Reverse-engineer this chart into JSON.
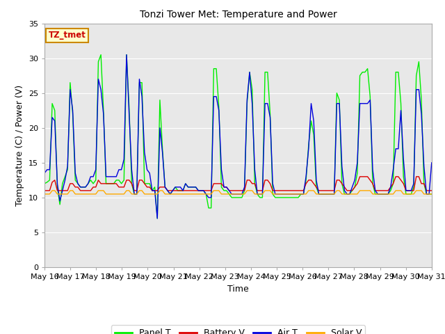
{
  "title": "Tonzi Tower Met: Temperature and Power",
  "xlabel": "Time",
  "ylabel": "Temperature (C) / Power (V)",
  "ylim": [
    0,
    35
  ],
  "yticks": [
    0,
    5,
    10,
    15,
    20,
    25,
    30,
    35
  ],
  "fig_bg_color": "#ffffff",
  "plot_bg_color": "#e8e8e8",
  "annotation_text": "TZ_tmet",
  "annotation_color": "#cc0000",
  "annotation_bg": "#ffffcc",
  "annotation_border": "#cc8800",
  "x_labels": [
    "May 16",
    "May 17",
    "May 18",
    "May 19",
    "May 20",
    "May 21",
    "May 22",
    "May 23",
    "May 24",
    "May 25",
    "May 26",
    "May 27",
    "May 28",
    "May 29",
    "May 30",
    "May 31"
  ],
  "legend_labels": [
    "Panel T",
    "Battery V",
    "Air T",
    "Solar V"
  ],
  "legend_colors": [
    "#00ee00",
    "#dd0000",
    "#0000dd",
    "#ffaa00"
  ],
  "panel_t": [
    12.0,
    12.2,
    12.5,
    23.5,
    22.5,
    11.5,
    9.0,
    12.0,
    13.0,
    14.0,
    26.5,
    22.0,
    12.5,
    12.0,
    11.5,
    11.5,
    11.5,
    12.0,
    12.5,
    12.0,
    12.5,
    29.5,
    30.5,
    22.5,
    12.0,
    12.0,
    12.0,
    12.0,
    12.5,
    12.5,
    12.0,
    12.5,
    30.5,
    23.0,
    12.0,
    10.5,
    10.5,
    26.5,
    26.5,
    12.0,
    12.0,
    12.0,
    11.0,
    11.5,
    7.0,
    24.0,
    17.0,
    11.5,
    11.0,
    10.5,
    11.0,
    11.5,
    11.0,
    11.0,
    11.0,
    12.0,
    11.5,
    11.5,
    11.5,
    11.5,
    11.0,
    11.0,
    11.0,
    10.5,
    8.5,
    8.5,
    28.5,
    28.5,
    23.0,
    11.5,
    11.0,
    11.0,
    10.5,
    10.0,
    10.0,
    10.0,
    10.0,
    10.0,
    11.0,
    23.5,
    28.0,
    25.5,
    12.0,
    10.5,
    10.0,
    10.0,
    28.0,
    28.0,
    22.0,
    10.5,
    10.0,
    10.0,
    10.0,
    10.0,
    10.0,
    10.0,
    10.0,
    10.0,
    10.0,
    10.0,
    10.5,
    10.5,
    12.5,
    17.5,
    21.0,
    19.0,
    11.5,
    10.5,
    10.5,
    10.5,
    10.5,
    10.5,
    10.5,
    10.5,
    25.0,
    24.0,
    12.0,
    10.5,
    10.5,
    10.5,
    11.0,
    11.5,
    13.5,
    27.5,
    28.0,
    28.0,
    28.5,
    24.5,
    12.0,
    10.5,
    10.5,
    10.5,
    10.5,
    10.5,
    10.5,
    11.0,
    12.0,
    28.0,
    28.0,
    23.5,
    13.0,
    10.5,
    10.5,
    10.5,
    11.5,
    27.5,
    29.5,
    24.0,
    12.0,
    10.5,
    10.5,
    10.5
  ],
  "battery_v": [
    11.0,
    11.0,
    11.0,
    12.2,
    12.5,
    11.0,
    11.0,
    11.0,
    11.0,
    11.0,
    12.0,
    12.0,
    11.5,
    11.5,
    11.0,
    11.0,
    11.0,
    11.0,
    11.0,
    11.5,
    11.5,
    12.5,
    12.0,
    12.0,
    12.0,
    12.0,
    12.0,
    12.0,
    12.0,
    11.5,
    11.5,
    11.5,
    12.5,
    12.5,
    12.0,
    11.0,
    11.0,
    12.5,
    12.5,
    12.0,
    11.5,
    11.5,
    11.0,
    11.0,
    11.0,
    11.5,
    11.5,
    11.5,
    11.0,
    11.0,
    11.0,
    11.0,
    11.0,
    11.0,
    11.0,
    11.0,
    11.0,
    11.0,
    11.0,
    11.0,
    11.0,
    11.0,
    11.0,
    11.0,
    11.0,
    11.0,
    12.0,
    12.0,
    12.0,
    12.0,
    11.5,
    11.5,
    11.0,
    11.0,
    11.0,
    11.0,
    11.0,
    11.0,
    11.0,
    12.5,
    12.5,
    12.0,
    12.0,
    11.0,
    11.0,
    11.0,
    12.5,
    12.5,
    12.0,
    11.0,
    11.0,
    11.0,
    11.0,
    11.0,
    11.0,
    11.0,
    11.0,
    11.0,
    11.0,
    11.0,
    11.0,
    11.0,
    12.0,
    12.5,
    12.5,
    12.0,
    11.5,
    11.0,
    11.0,
    11.0,
    11.0,
    11.0,
    11.0,
    11.0,
    12.5,
    12.5,
    12.0,
    11.5,
    11.0,
    11.0,
    11.0,
    11.5,
    12.0,
    13.0,
    13.0,
    13.0,
    13.0,
    12.5,
    12.0,
    11.0,
    11.0,
    11.0,
    11.0,
    11.0,
    11.0,
    11.5,
    12.0,
    13.0,
    13.0,
    12.5,
    12.0,
    11.0,
    11.0,
    11.0,
    11.0,
    13.0,
    13.0,
    12.0,
    12.0,
    11.0,
    11.0,
    11.0
  ],
  "air_t": [
    13.5,
    14.0,
    14.0,
    21.5,
    21.0,
    12.0,
    9.5,
    11.0,
    12.5,
    14.5,
    25.5,
    22.5,
    13.5,
    12.0,
    11.5,
    11.5,
    11.5,
    12.0,
    13.0,
    13.0,
    14.0,
    27.0,
    25.5,
    22.0,
    13.0,
    13.0,
    13.0,
    13.0,
    13.0,
    14.0,
    14.0,
    15.5,
    30.5,
    22.0,
    14.0,
    10.5,
    10.5,
    27.0,
    24.5,
    16.5,
    14.0,
    13.5,
    11.0,
    11.0,
    7.0,
    20.0,
    16.5,
    11.5,
    11.0,
    10.5,
    11.0,
    11.5,
    11.5,
    11.5,
    11.0,
    12.0,
    11.5,
    11.5,
    11.5,
    11.5,
    11.0,
    11.0,
    11.0,
    10.5,
    10.0,
    10.0,
    24.5,
    24.5,
    22.5,
    14.0,
    11.5,
    11.5,
    11.0,
    10.5,
    10.5,
    10.5,
    10.5,
    10.5,
    11.5,
    24.0,
    28.0,
    23.5,
    14.0,
    10.5,
    10.5,
    10.5,
    23.5,
    23.5,
    21.5,
    12.0,
    10.5,
    10.5,
    10.5,
    10.5,
    10.5,
    10.5,
    10.5,
    10.5,
    10.5,
    10.5,
    10.5,
    10.5,
    13.0,
    17.0,
    23.5,
    21.0,
    12.5,
    10.5,
    10.5,
    10.5,
    10.5,
    10.5,
    10.5,
    10.5,
    23.5,
    23.5,
    14.5,
    11.0,
    10.5,
    10.5,
    11.5,
    12.5,
    15.0,
    23.5,
    23.5,
    23.5,
    23.5,
    24.0,
    14.0,
    11.0,
    10.5,
    10.5,
    10.5,
    10.5,
    10.5,
    11.5,
    14.0,
    17.0,
    17.0,
    22.5,
    15.5,
    11.0,
    11.0,
    11.0,
    12.0,
    25.5,
    25.5,
    22.0,
    14.5,
    10.5,
    10.5,
    15.0
  ],
  "solar_v": [
    10.5,
    10.5,
    10.5,
    11.0,
    11.0,
    10.5,
    10.5,
    10.5,
    10.5,
    10.5,
    11.0,
    11.0,
    10.5,
    10.5,
    10.5,
    10.5,
    10.5,
    10.5,
    10.5,
    10.5,
    10.5,
    11.0,
    11.0,
    11.0,
    10.5,
    10.5,
    10.5,
    10.5,
    10.5,
    10.5,
    10.5,
    10.5,
    11.0,
    11.0,
    10.5,
    10.5,
    10.5,
    11.0,
    11.0,
    10.5,
    10.5,
    10.5,
    10.5,
    10.5,
    10.5,
    11.0,
    11.0,
    10.5,
    10.5,
    10.5,
    10.5,
    10.5,
    10.5,
    10.5,
    10.5,
    10.5,
    10.5,
    10.5,
    10.5,
    10.5,
    10.5,
    10.5,
    10.5,
    10.5,
    10.5,
    10.5,
    11.0,
    11.0,
    11.0,
    10.5,
    10.5,
    10.5,
    10.5,
    10.5,
    10.5,
    10.5,
    10.5,
    10.5,
    10.5,
    11.0,
    11.0,
    11.0,
    10.5,
    10.5,
    10.5,
    10.5,
    11.0,
    11.0,
    11.0,
    10.5,
    10.5,
    10.5,
    10.5,
    10.5,
    10.5,
    10.5,
    10.5,
    10.5,
    10.5,
    10.5,
    10.5,
    10.5,
    10.5,
    11.0,
    11.0,
    11.0,
    10.5,
    10.5,
    10.5,
    10.5,
    10.5,
    10.5,
    10.5,
    10.5,
    11.0,
    11.0,
    10.5,
    10.5,
    10.5,
    10.5,
    10.5,
    10.5,
    10.5,
    11.0,
    11.0,
    11.0,
    11.0,
    11.0,
    10.5,
    10.5,
    10.5,
    10.5,
    10.5,
    10.5,
    10.5,
    10.5,
    10.5,
    11.0,
    11.0,
    11.0,
    10.5,
    10.5,
    10.5,
    10.5,
    10.5,
    11.0,
    11.0,
    11.0,
    10.5,
    10.5,
    10.5,
    10.5
  ]
}
